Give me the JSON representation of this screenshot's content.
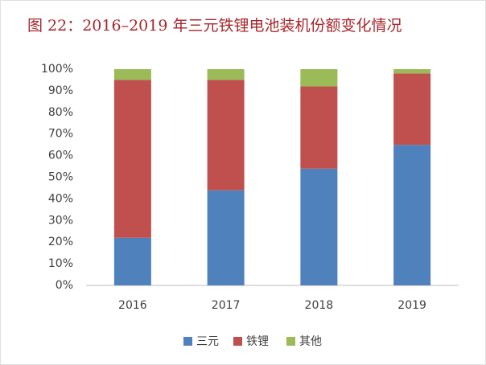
{
  "chart_data": {
    "type": "stacked_bar",
    "title": "图 22：2016–2019 年三元铁锂电池装机份额变化情况",
    "categories": [
      "2016",
      "2017",
      "2018",
      "2019"
    ],
    "series": [
      {
        "name": "三元",
        "color": "#4f81bd",
        "values": [
          22,
          44,
          54,
          65
        ]
      },
      {
        "name": "铁锂",
        "color": "#c0504d",
        "values": [
          73,
          51,
          38,
          33
        ]
      },
      {
        "name": "其他",
        "color": "#9bbb59",
        "values": [
          5,
          5,
          8,
          2
        ]
      }
    ],
    "ylim": [
      0,
      100
    ],
    "yticks": [
      {
        "value": 0,
        "label": "0%"
      },
      {
        "value": 10,
        "label": "10%"
      },
      {
        "value": 20,
        "label": "20%"
      },
      {
        "value": 30,
        "label": "30%"
      },
      {
        "value": 40,
        "label": "40%"
      },
      {
        "value": 50,
        "label": "50%"
      },
      {
        "value": 60,
        "label": "60%"
      },
      {
        "value": 70,
        "label": "70%"
      },
      {
        "value": 80,
        "label": "80%"
      },
      {
        "value": 90,
        "label": "90%"
      },
      {
        "value": 100,
        "label": "100%"
      }
    ],
    "legend": "bottom"
  }
}
